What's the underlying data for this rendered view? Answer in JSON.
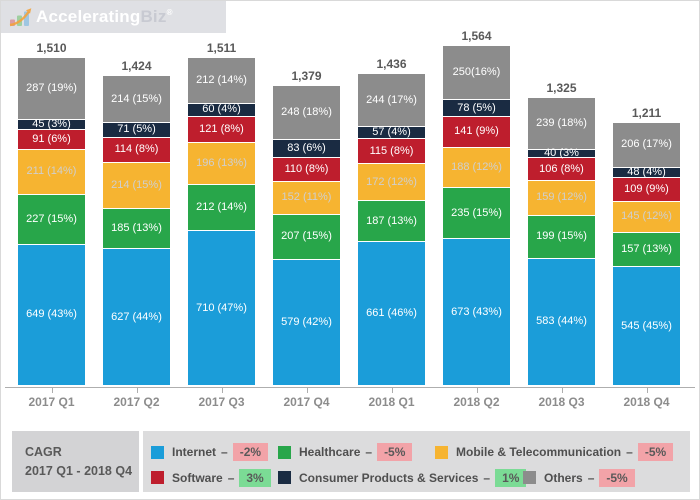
{
  "logo": {
    "brand_bold": "Accelerating",
    "brand_light": "Biz",
    "mark": "®"
  },
  "cagr": {
    "line1": "CAGR",
    "line2": "2017 Q1 - 2018 Q4"
  },
  "colors": {
    "negative_badge_bg": "#f2a3a8",
    "positive_badge_bg": "#7bdb95",
    "axis": "#aeaeae",
    "total_text": "#595959",
    "x_label_text": "#8c8c8c"
  },
  "chart_data": {
    "type": "bar",
    "stacked": true,
    "categories": [
      "2017 Q1",
      "2017 Q2",
      "2017 Q3",
      "2017 Q4",
      "2018 Q1",
      "2018 Q2",
      "2018 Q3",
      "2018 Q4"
    ],
    "totals": [
      1510,
      1424,
      1511,
      1379,
      1436,
      1564,
      1325,
      1211
    ],
    "total_labels": [
      "1,510",
      "1,424",
      "1,511",
      "1,379",
      "1,436",
      "1,564",
      "1,325",
      "1,211"
    ],
    "ylim": [
      0,
      1600
    ],
    "grid": false,
    "legend_position": "bottom",
    "series": [
      {
        "name": "Internet",
        "color": "#1b9dd9",
        "label_color": "#ffffff",
        "values": [
          649,
          627,
          710,
          579,
          661,
          673,
          583,
          545
        ],
        "labels": [
          "649 (43%)",
          "627 (44%)",
          "710 (47%)",
          "579 (42%)",
          "661 (46%)",
          "673 (43%)",
          "583 (44%)",
          "545 (45%)"
        ]
      },
      {
        "name": "Healthcare",
        "color": "#28a64a",
        "label_color": "#ffffff",
        "values": [
          227,
          185,
          212,
          207,
          187,
          235,
          199,
          157
        ],
        "labels": [
          "227 (15%)",
          "185 (13%)",
          "212 (14%)",
          "207 (15%)",
          "187 (13%)",
          "235 (15%)",
          "199 (15%)",
          "157 (13%)"
        ]
      },
      {
        "name": "Mobile & Telecommunication",
        "color": "#f6b431",
        "label_color": "#cfcfcf",
        "values": [
          211,
          214,
          196,
          152,
          172,
          188,
          159,
          145
        ],
        "labels": [
          "211 (14%)",
          "214 (15%)",
          "196 (13%)",
          "152 (11%)",
          "172 (12%)",
          "188 (12%)",
          "159 (12%)",
          "145 (12%)"
        ]
      },
      {
        "name": "Software",
        "color": "#be1e2d",
        "label_color": "#ffffff",
        "values": [
          91,
          114,
          121,
          110,
          115,
          141,
          106,
          109
        ],
        "labels": [
          "91 (6%)",
          "114 (8%)",
          "121 (8%)",
          "110 (8%)",
          "115 (8%)",
          "141 (9%)",
          "106 (8%)",
          "109 (9%)"
        ]
      },
      {
        "name": "Consumer Products & Services",
        "color": "#1a2b42",
        "label_color": "#ffffff",
        "values": [
          45,
          71,
          60,
          83,
          57,
          78,
          40,
          48
        ],
        "labels": [
          "45 (3%)",
          "71 (5%)",
          "60 (4%)",
          "83 (6%)",
          "57 (4%)",
          "78 (5%)",
          "40 (3%",
          "48 (4%)"
        ]
      },
      {
        "name": "Others",
        "color": "#8c8c8c",
        "label_color": "#ffffff",
        "values": [
          287,
          214,
          212,
          248,
          244,
          250,
          239,
          206
        ],
        "labels": [
          "287 (19%)",
          "214 (15%)",
          "212 (14%)",
          "248 (18%)",
          "244 (17%)",
          "250(16%)",
          "239 (18%)",
          "206 (17%)"
        ]
      }
    ]
  },
  "legend": {
    "separator": "–",
    "rows": [
      [
        {
          "name": "Internet",
          "cagr": "-2%",
          "positive": false,
          "color": "#1b9dd9",
          "width_class": "w1"
        },
        {
          "name": "Healthcare",
          "cagr": "-5%",
          "positive": false,
          "color": "#28a64a",
          "width_class": "w2"
        },
        {
          "name": "Mobile & Telecommunication",
          "cagr": "-5%",
          "positive": false,
          "color": "#f6b431",
          "width_class": ""
        }
      ],
      [
        {
          "name": "Software",
          "cagr": "3%",
          "positive": true,
          "color": "#be1e2d",
          "width_class": "w1"
        },
        {
          "name": "Consumer Products & Services",
          "cagr": "1%",
          "positive": true,
          "color": "#1a2b42",
          "width_class": "w3"
        },
        {
          "name": "Others",
          "cagr": "-5%",
          "positive": false,
          "color": "#8c8c8c",
          "width_class": ""
        }
      ]
    ]
  }
}
